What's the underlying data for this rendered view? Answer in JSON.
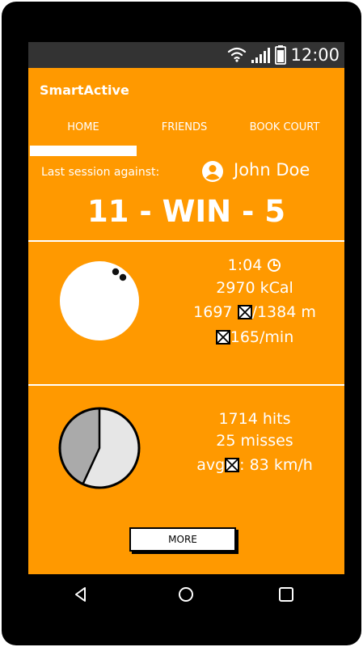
{
  "status_bar": {
    "time": "12:00",
    "icons": [
      "wifi-icon",
      "signal-icon",
      "battery-icon"
    ]
  },
  "app": {
    "title": "SmartActive"
  },
  "tabs": [
    {
      "label": "HOME",
      "active": true
    },
    {
      "label": "FRIENDS",
      "active": false
    },
    {
      "label": "BOOK COURT",
      "active": false
    }
  ],
  "last_session": {
    "label": "Last session against:",
    "opponent": "John Doe",
    "score": "11 - WIN - 5"
  },
  "stats": {
    "duration": "1:04",
    "calories": "2970 kCal",
    "distance_a": "1697",
    "distance_b": "/1384 m",
    "rate": "165/min"
  },
  "hits": {
    "hits_text": "1714 hits",
    "misses_text": "25 misses",
    "avg_prefix": "avg",
    "avg_value": ": 83 km/h"
  },
  "more_button": {
    "label": "MORE"
  },
  "colors": {
    "accent": "#ff9900",
    "status_bar": "#333333",
    "pie_dark": "#aaaaaa",
    "pie_light": "#e6e6e6"
  }
}
